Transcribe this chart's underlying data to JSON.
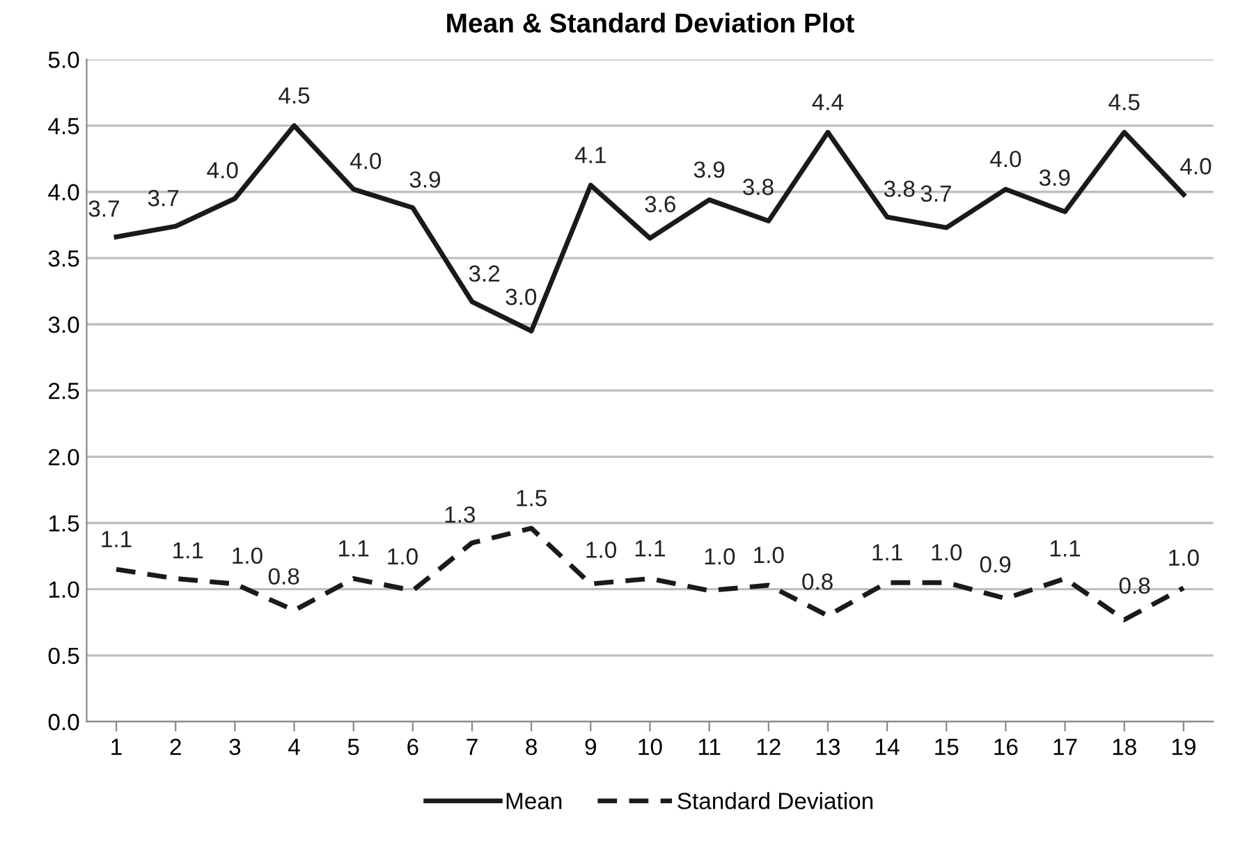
{
  "chart_data": {
    "type": "line",
    "title": "Mean & Standard Deviation Plot",
    "categories": [
      "1",
      "2",
      "3",
      "4",
      "5",
      "6",
      "7",
      "8",
      "9",
      "10",
      "11",
      "12",
      "13",
      "14",
      "15",
      "16",
      "17",
      "18",
      "19"
    ],
    "series": [
      {
        "name": "Mean",
        "color": "#1a1a1a",
        "line_style": "solid",
        "values": [
          3.66,
          3.74,
          3.95,
          4.5,
          4.02,
          3.88,
          3.17,
          2.95,
          4.05,
          3.65,
          3.94,
          3.78,
          4.45,
          3.81,
          3.73,
          4.02,
          3.85,
          4.45,
          3.98
        ],
        "value_labels": [
          "3.7",
          "3.7",
          "4.0",
          "4.5",
          "4.0",
          "3.9",
          "3.2",
          "3.0",
          "4.1",
          "3.6",
          "3.9",
          "3.8",
          "4.4",
          "3.8",
          "3.7",
          "4.0",
          "3.9",
          "4.5",
          "4.0"
        ]
      },
      {
        "name": "Standard Deviation",
        "color": "#1a1a1a",
        "line_style": "dashed",
        "values": [
          1.15,
          1.08,
          1.04,
          0.84,
          1.08,
          0.99,
          1.35,
          1.46,
          1.04,
          1.08,
          0.99,
          1.03,
          0.8,
          1.05,
          1.05,
          0.93,
          1.08,
          0.77,
          1.01
        ],
        "value_labels": [
          "1.1",
          "1.1",
          "1.0",
          "0.8",
          "1.1",
          "1.0",
          "1.3",
          "1.5",
          "1.0",
          "1.1",
          "1.0",
          "1.0",
          "0.8",
          "1.1",
          "1.0",
          "0.9",
          "1.1",
          "0.8",
          "1.0"
        ]
      }
    ],
    "ylim": [
      0,
      5
    ],
    "yticks": [
      {
        "value": 0,
        "label": "0.0"
      },
      {
        "value": 0.5,
        "label": "0.5"
      },
      {
        "value": 1,
        "label": "1.0"
      },
      {
        "value": 1.5,
        "label": "1.5"
      },
      {
        "value": 2,
        "label": "2.0"
      },
      {
        "value": 2.5,
        "label": "2.5"
      },
      {
        "value": 3,
        "label": "3.0"
      },
      {
        "value": 3.5,
        "label": "3.5"
      },
      {
        "value": 4,
        "label": "4.0"
      },
      {
        "value": 4.5,
        "label": "4.5"
      },
      {
        "value": 5,
        "label": "5.0"
      }
    ],
    "grid": "y",
    "legend": "bottom",
    "marker": "none"
  }
}
